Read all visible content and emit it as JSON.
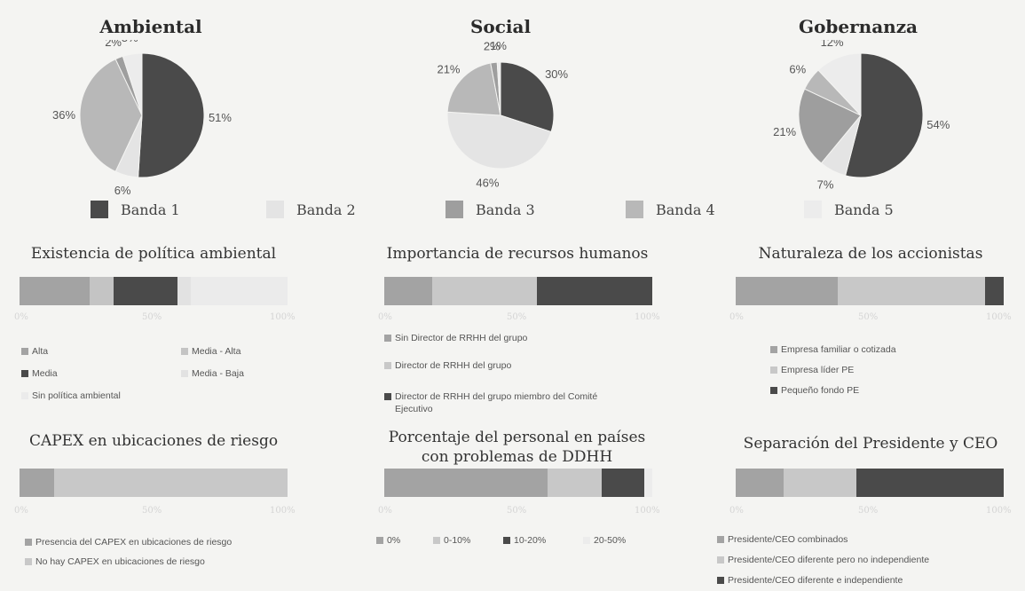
{
  "colors": {
    "band1": "#4a4a4a",
    "band2": "#e4e4e4",
    "band3": "#9e9e9e",
    "band4": "#b8b8b8",
    "band5": "#ececec"
  },
  "legend": [
    "Banda 1",
    "Banda 2",
    "Banda 3",
    "Banda 4",
    "Banda 5"
  ],
  "chart_data": [
    {
      "type": "pie",
      "title": "Ambiental",
      "slices": [
        {
          "name": "Banda 1",
          "value": 51,
          "label": "51%",
          "color": "#4a4a4a"
        },
        {
          "name": "Banda 2",
          "value": 6,
          "label": "6%",
          "color": "#e4e4e4"
        },
        {
          "name": "Banda 4",
          "value": 36,
          "label": "36%",
          "color": "#b8b8b8"
        },
        {
          "name": "Banda 3",
          "value": 2,
          "label": "2%",
          "color": "#9e9e9e"
        },
        {
          "name": "Banda 5",
          "value": 5,
          "label": "5%",
          "color": "#ececec"
        }
      ]
    },
    {
      "type": "pie",
      "title": "Social",
      "slices": [
        {
          "name": "Banda 1",
          "value": 30,
          "label": "30%",
          "color": "#4a4a4a"
        },
        {
          "name": "Banda 2",
          "value": 46,
          "label": "46%",
          "color": "#e4e4e4"
        },
        {
          "name": "Banda 4",
          "value": 21,
          "label": "21%",
          "color": "#b8b8b8"
        },
        {
          "name": "Banda 3",
          "value": 2,
          "label": "2%",
          "color": "#9e9e9e"
        },
        {
          "name": "Banda 5",
          "value": 1,
          "label": "1%",
          "color": "#ececec"
        }
      ]
    },
    {
      "type": "pie",
      "title": "Gobernanza",
      "slices": [
        {
          "name": "Banda 1",
          "value": 54,
          "label": "54%",
          "color": "#4a4a4a"
        },
        {
          "name": "Banda 2",
          "value": 7,
          "label": "7%",
          "color": "#e4e4e4"
        },
        {
          "name": "Banda 3",
          "value": 21,
          "label": "21%",
          "color": "#9e9e9e"
        },
        {
          "name": "Banda 4",
          "value": 6,
          "label": "6%",
          "color": "#b8b8b8"
        },
        {
          "name": "Banda 5",
          "value": 12,
          "label": "12%",
          "color": "#ececec"
        }
      ]
    },
    {
      "type": "bar",
      "orientation": "horizontal-stacked-100",
      "title": "Existencia de política ambiental",
      "ticks": [
        "0%",
        "50%",
        "100%"
      ],
      "series": [
        {
          "name": "Alta",
          "value": 26,
          "color": "#a3a3a3"
        },
        {
          "name": "Media - Alta",
          "value": 9,
          "color": "#c4c4c4"
        },
        {
          "name": "Media",
          "value": 24,
          "color": "#4a4a4a"
        },
        {
          "name": "Media - Baja",
          "value": 5,
          "color": "#e2e2e2"
        },
        {
          "name": "Sin política ambiental",
          "value": 36,
          "color": "#ebebeb"
        }
      ]
    },
    {
      "type": "bar",
      "orientation": "horizontal-stacked-100",
      "title": "Importancia de recursos humanos",
      "ticks": [
        "0%",
        "50%",
        "100%"
      ],
      "series": [
        {
          "name": "Sin Director de RRHH del grupo",
          "value": 18,
          "color": "#a3a3a3"
        },
        {
          "name": "Director de RRHH del grupo",
          "value": 39,
          "color": "#c8c8c8"
        },
        {
          "name": "Director de RRHH del grupo miembro del Comité Ejecutivo",
          "value": 43,
          "color": "#4a4a4a"
        }
      ]
    },
    {
      "type": "bar",
      "orientation": "horizontal-stacked-100",
      "title": "Naturaleza de los accionistas",
      "ticks": [
        "0%",
        "50%",
        "100%"
      ],
      "series": [
        {
          "name": "Empresa familiar o cotizada",
          "value": 38,
          "color": "#a3a3a3"
        },
        {
          "name": "Empresa líder PE",
          "value": 55,
          "color": "#c8c8c8"
        },
        {
          "name": "Pequeño fondo PE",
          "value": 7,
          "color": "#4a4a4a"
        }
      ]
    },
    {
      "type": "bar",
      "orientation": "horizontal-stacked-100",
      "title": "CAPEX en ubicaciones de riesgo",
      "ticks": [
        "0%",
        "50%",
        "100%"
      ],
      "series": [
        {
          "name": "Presencia del CAPEX en ubicaciones de riesgo",
          "value": 13,
          "color": "#a3a3a3"
        },
        {
          "name": "No hay CAPEX en ubicaciones de riesgo",
          "value": 87,
          "color": "#c8c8c8"
        }
      ]
    },
    {
      "type": "bar",
      "orientation": "horizontal-stacked-100",
      "title_lines": [
        "Porcentaje del personal en países",
        "con problemas de DDHH"
      ],
      "ticks": [
        "0%",
        "50%",
        "100%"
      ],
      "series": [
        {
          "name": "0%",
          "value": 61,
          "color": "#a3a3a3"
        },
        {
          "name": "0-10%",
          "value": 20,
          "color": "#c8c8c8"
        },
        {
          "name": "10-20%",
          "value": 16,
          "color": "#4a4a4a"
        },
        {
          "name": "20-50%",
          "value": 3,
          "color": "#ececec"
        }
      ]
    },
    {
      "type": "bar",
      "orientation": "horizontal-stacked-100",
      "title": "Separación del Presidente y CEO",
      "ticks": [
        "0%",
        "50%",
        "100%"
      ],
      "series": [
        {
          "name": "Presidente/CEO combinados",
          "value": 18,
          "color": "#a3a3a3"
        },
        {
          "name": "Presidente/CEO diferente pero no independiente",
          "value": 27,
          "color": "#c8c8c8"
        },
        {
          "name": "Presidente/CEO diferente e independiente",
          "value": 55,
          "color": "#4a4a4a"
        }
      ]
    }
  ]
}
